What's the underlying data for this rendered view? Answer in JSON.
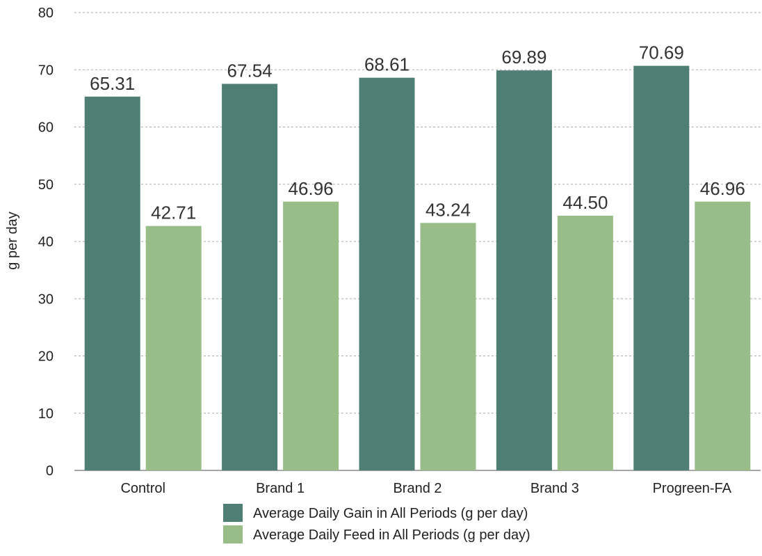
{
  "chart_data": {
    "type": "bar",
    "title": "",
    "xlabel": "",
    "ylabel": "g per day",
    "ylim": [
      0,
      80
    ],
    "yticks": [
      0,
      10,
      20,
      30,
      40,
      50,
      60,
      70,
      80
    ],
    "grid": true,
    "legend_position": "bottom",
    "categories": [
      "Control",
      "Brand 1",
      "Brand 2",
      "Brand 3",
      "Progreen-FA"
    ],
    "series": [
      {
        "name": "Average Daily Gain in All Periods (g per day)",
        "color": "#4e7e74",
        "values": [
          65.31,
          67.54,
          68.61,
          69.89,
          70.69
        ],
        "labels": [
          "65.31",
          "67.54",
          "68.61",
          "69.89",
          "70.69"
        ]
      },
      {
        "name": "Average Daily Feed in All Periods (g per day)",
        "color": "#98bd88",
        "values": [
          42.71,
          46.96,
          43.24,
          44.5,
          46.96
        ],
        "labels": [
          "42.71",
          "46.96",
          "43.24",
          "44.50",
          "46.96"
        ]
      }
    ]
  }
}
